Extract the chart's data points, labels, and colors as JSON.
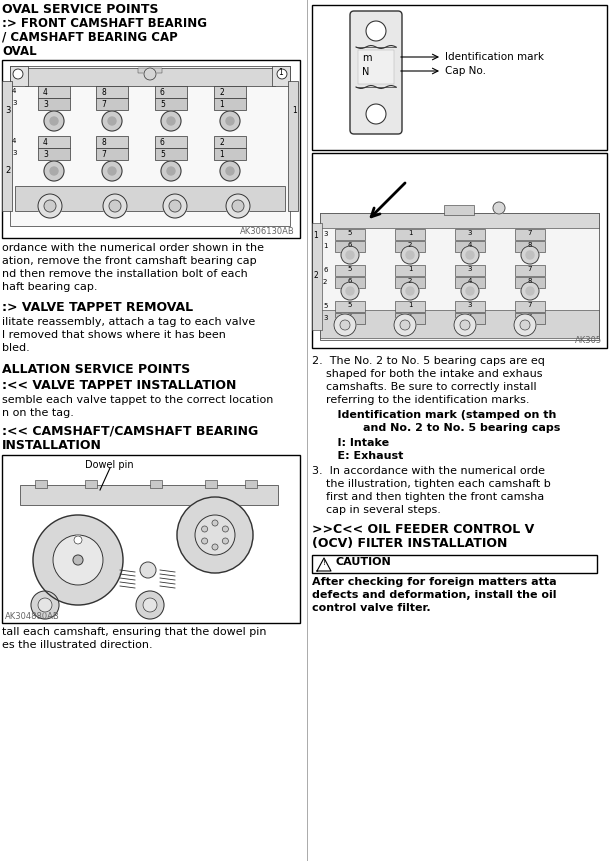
{
  "bg_color": "#ffffff",
  "sections": {
    "title1": "OVAL SERVICE POINTS",
    "heading1a": ":> FRONT CAMSHAFT BEARING",
    "heading1b": "/ CAMSHAFT BEARING CAP",
    "heading1c": "OVAL",
    "text1a": "ordance with the numerical order shown in the",
    "text1b": "ation, remove the front camshaft bearing cap",
    "text1c": "nd then remove the installation bolt of each",
    "text1d": "haft bearing cap.",
    "heading2": ":> VALVE TAPPET REMOVAL",
    "text2a": "ilitate reassembly, attach a tag to each valve",
    "text2b": "l removed that shows where it has been",
    "text2c": "bled.",
    "heading3": "ALLATION SERVICE POINTS",
    "heading4": ":<< VALVE TAPPET INSTALLATION",
    "text3a": "semble each valve tappet to the correct location",
    "text3b": "n on the tag.",
    "heading5a": ":<< CAMSHAFT/CAMSHAFT BEARING",
    "heading5b": "INSTALLATION",
    "text4a": "tall each camshaft, ensuring that the dowel pin",
    "text4b": "es the illustrated direction.",
    "fig1_label": "AK306130AB",
    "fig2_label": "AK305",
    "fig3_label": "AK304880AB",
    "ident_mark_label": "Identification mark",
    "cap_no_label": "Cap No.",
    "dowel_pin_label": "Dowel pin",
    "right_2a": "2.  The No. 2 to No. 5 bearing caps are eq",
    "right_2b": "    shaped for both the intake and exhaus",
    "right_2c": "    camshafts. Be sure to correctly install",
    "right_2d": "    referring to the identification marks.",
    "right_2e": "    Identification mark (stamped on th",
    "right_2f": "        and No. 2 to No. 5 bearing caps",
    "right_2g": "    I: Intake",
    "right_2h": "    E: Exhaust",
    "right_3a": "3.  In accordance with the numerical orde",
    "right_3b": "    the illustration, tighten each camshaft b",
    "right_3c": "    first and then tighten the front camsha",
    "right_3d": "    cap in several steps.",
    "ocv_heading1": ">>C<< OIL FEEDER CONTROL V",
    "ocv_heading2": "(OCV) FILTER INSTALLATION",
    "caution_text1": "After checking for foreign matters atta",
    "caution_text2": "defects and deformation, install the oil",
    "caution_text3": "control valve filter."
  },
  "colors": {
    "black": "#000000",
    "gray": "#666666",
    "light_gray": "#cccccc",
    "very_light": "#eeeeee",
    "diagram_bg": "#f0f0f0",
    "line_color": "#333333"
  }
}
